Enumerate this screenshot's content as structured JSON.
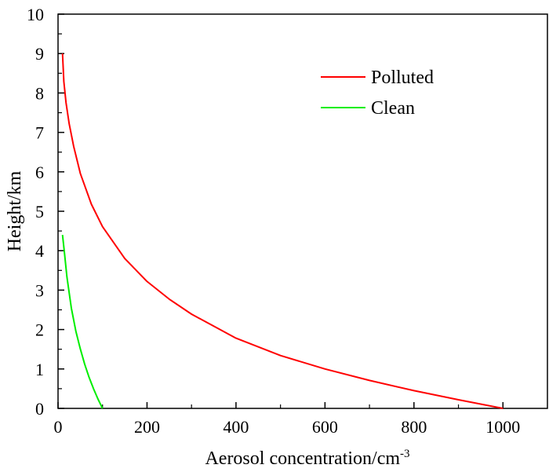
{
  "chart_data": {
    "type": "line",
    "title": "",
    "xlabel": "Aerosol concentration/cm",
    "xlabel_superscript": "-3",
    "ylabel": "Height/km",
    "xlim": [
      0,
      1100
    ],
    "ylim": [
      0,
      10
    ],
    "xticks": [
      "0",
      "200",
      "400",
      "600",
      "800",
      "1000"
    ],
    "yticks": [
      "0",
      "1",
      "2",
      "3",
      "4",
      "5",
      "6",
      "7",
      "8",
      "9",
      "10"
    ],
    "grid": false,
    "legend_position": "top-right",
    "series": [
      {
        "name": "Polluted",
        "color": "#ff0000",
        "x": [
          1000,
          900,
          800,
          700,
          600,
          500,
          400,
          300,
          250,
          200,
          150,
          100,
          75,
          50,
          35,
          25,
          18,
          13,
          10
        ],
        "y": [
          0,
          0.22,
          0.45,
          0.71,
          1.0,
          1.34,
          1.78,
          2.39,
          2.77,
          3.22,
          3.8,
          4.61,
          5.18,
          5.96,
          6.65,
          7.22,
          7.75,
          8.29,
          9.0
        ]
      },
      {
        "name": "Clean",
        "color": "#00ee00",
        "x": [
          100,
          90,
          80,
          70,
          60,
          50,
          40,
          30,
          20,
          14,
          10
        ],
        "y": [
          0,
          0.23,
          0.49,
          0.78,
          1.12,
          1.51,
          1.96,
          2.54,
          3.34,
          4.0,
          4.4
        ]
      }
    ]
  }
}
